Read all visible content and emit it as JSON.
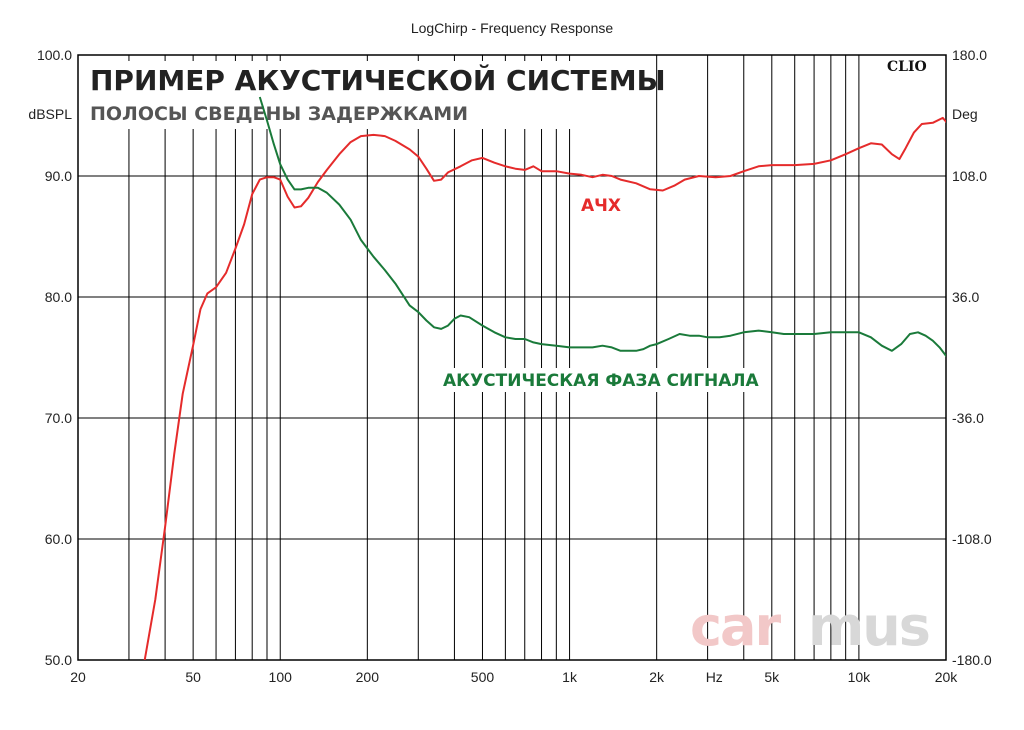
{
  "window_title": "LogChirp - Frequency Response",
  "heading": "ПРИМЕР АКУСТИЧЕСКОЙ СИСТЕМЫ",
  "subheading": "ПОЛОСЫ СВЕДЕНЫ ЗАДЕРЖКАМИ",
  "brand_mark": "CLIO",
  "watermark": {
    "part1": "car",
    "part2": "mus"
  },
  "chart_data": {
    "type": "line",
    "title": "LogChirp - Frequency Response",
    "xlabel": "Hz",
    "ylabel": "dBSPL",
    "y2label": "Deg",
    "xscale": "log",
    "xlim": [
      20,
      20000
    ],
    "ylim": [
      50,
      100
    ],
    "y2lim": [
      -180,
      180
    ],
    "grid": true,
    "x_ticks": [
      {
        "value": 20,
        "label": "20"
      },
      {
        "value": 50,
        "label": "50"
      },
      {
        "value": 100,
        "label": "100"
      },
      {
        "value": 200,
        "label": "200"
      },
      {
        "value": 500,
        "label": "500"
      },
      {
        "value": 1000,
        "label": "1k"
      },
      {
        "value": 2000,
        "label": "2k"
      },
      {
        "value": 5000,
        "label": "5k"
      },
      {
        "value": 10000,
        "label": "10k"
      },
      {
        "value": 20000,
        "label": "20k"
      }
    ],
    "x_unit_label": {
      "value": 3163,
      "label": "Hz"
    },
    "y_ticks": [
      {
        "value": 100,
        "label": "100.0"
      },
      {
        "value": 90,
        "label": "90.0"
      },
      {
        "value": 80,
        "label": "80.0"
      },
      {
        "value": 70,
        "label": "70.0"
      },
      {
        "value": 60,
        "label": "60.0"
      },
      {
        "value": 50,
        "label": "50.0"
      }
    ],
    "y2_ticks": [
      {
        "value": 180,
        "label": "180.0"
      },
      {
        "value": 108,
        "label": "108.0"
      },
      {
        "value": 36,
        "label": "36.0"
      },
      {
        "value": -36,
        "label": "-36.0"
      },
      {
        "value": -108,
        "label": "-108.0"
      },
      {
        "value": -180,
        "label": "-180.0"
      }
    ],
    "series": [
      {
        "name": "АЧХ",
        "axis": "left",
        "color": "#e52b2b",
        "points": [
          [
            34,
            50
          ],
          [
            37,
            55
          ],
          [
            40,
            61
          ],
          [
            43,
            67
          ],
          [
            46,
            72
          ],
          [
            50,
            76
          ],
          [
            53,
            79
          ],
          [
            56,
            80.3
          ],
          [
            60,
            80.8
          ],
          [
            65,
            82
          ],
          [
            70,
            84
          ],
          [
            75,
            86
          ],
          [
            80,
            88.5
          ],
          [
            85,
            89.7
          ],
          [
            90,
            89.9
          ],
          [
            95,
            89.9
          ],
          [
            100,
            89.7
          ],
          [
            106,
            88.3
          ],
          [
            112,
            87.4
          ],
          [
            118,
            87.5
          ],
          [
            125,
            88.2
          ],
          [
            135,
            89.5
          ],
          [
            145,
            90.5
          ],
          [
            160,
            91.8
          ],
          [
            175,
            92.8
          ],
          [
            190,
            93.3
          ],
          [
            210,
            93.4
          ],
          [
            230,
            93.3
          ],
          [
            250,
            92.9
          ],
          [
            280,
            92.2
          ],
          [
            300,
            91.6
          ],
          [
            320,
            90.6
          ],
          [
            340,
            89.6
          ],
          [
            360,
            89.7
          ],
          [
            380,
            90.3
          ],
          [
            420,
            90.8
          ],
          [
            460,
            91.3
          ],
          [
            500,
            91.5
          ],
          [
            550,
            91.1
          ],
          [
            600,
            90.8
          ],
          [
            650,
            90.6
          ],
          [
            700,
            90.5
          ],
          [
            750,
            90.8
          ],
          [
            800,
            90.4
          ],
          [
            900,
            90.4
          ],
          [
            1000,
            90.2
          ],
          [
            1100,
            90.1
          ],
          [
            1200,
            89.9
          ],
          [
            1300,
            90.1
          ],
          [
            1400,
            90.0
          ],
          [
            1500,
            89.7
          ],
          [
            1700,
            89.4
          ],
          [
            1900,
            88.9
          ],
          [
            2100,
            88.8
          ],
          [
            2300,
            89.2
          ],
          [
            2500,
            89.7
          ],
          [
            2800,
            90.0
          ],
          [
            3200,
            89.9
          ],
          [
            3600,
            90.0
          ],
          [
            4000,
            90.4
          ],
          [
            4500,
            90.8
          ],
          [
            5000,
            90.9
          ],
          [
            6000,
            90.9
          ],
          [
            7000,
            91.0
          ],
          [
            8000,
            91.3
          ],
          [
            9000,
            91.8
          ],
          [
            10000,
            92.3
          ],
          [
            11000,
            92.7
          ],
          [
            12000,
            92.6
          ],
          [
            13000,
            91.8
          ],
          [
            13800,
            91.4
          ],
          [
            14500,
            92.3
          ],
          [
            15500,
            93.6
          ],
          [
            16500,
            94.3
          ],
          [
            18000,
            94.4
          ],
          [
            19500,
            94.8
          ],
          [
            20500,
            94.2
          ],
          [
            21500,
            92.4
          ],
          [
            22000,
            92.0
          ]
        ]
      },
      {
        "name": "АКУСТИЧЕСКАЯ ФАЗА СИГНАЛА",
        "axis": "right",
        "color": "#1a7a3a",
        "points": [
          [
            85,
            155
          ],
          [
            90,
            141
          ],
          [
            95,
            127
          ],
          [
            100,
            115
          ],
          [
            106,
            106
          ],
          [
            112,
            100
          ],
          [
            118,
            100
          ],
          [
            125,
            101
          ],
          [
            135,
            101
          ],
          [
            145,
            98
          ],
          [
            160,
            91
          ],
          [
            175,
            82
          ],
          [
            190,
            70
          ],
          [
            210,
            60
          ],
          [
            230,
            52
          ],
          [
            250,
            44
          ],
          [
            280,
            31
          ],
          [
            300,
            27
          ],
          [
            320,
            22
          ],
          [
            340,
            18
          ],
          [
            360,
            17
          ],
          [
            380,
            19
          ],
          [
            400,
            23
          ],
          [
            420,
            25
          ],
          [
            450,
            24
          ],
          [
            500,
            19
          ],
          [
            550,
            15
          ],
          [
            600,
            12
          ],
          [
            650,
            11
          ],
          [
            700,
            11
          ],
          [
            750,
            9
          ],
          [
            800,
            8
          ],
          [
            900,
            7
          ],
          [
            1000,
            6
          ],
          [
            1100,
            6
          ],
          [
            1200,
            6
          ],
          [
            1300,
            7
          ],
          [
            1400,
            6
          ],
          [
            1500,
            4
          ],
          [
            1600,
            4
          ],
          [
            1700,
            4
          ],
          [
            1800,
            5
          ],
          [
            1900,
            7
          ],
          [
            2000,
            8
          ],
          [
            2200,
            11
          ],
          [
            2400,
            14
          ],
          [
            2600,
            13
          ],
          [
            2800,
            13
          ],
          [
            3000,
            12
          ],
          [
            3300,
            12
          ],
          [
            3600,
            13
          ],
          [
            4000,
            15
          ],
          [
            4500,
            16
          ],
          [
            5000,
            15
          ],
          [
            5500,
            14
          ],
          [
            6000,
            14
          ],
          [
            7000,
            14
          ],
          [
            8000,
            15
          ],
          [
            9000,
            15
          ],
          [
            10000,
            15
          ],
          [
            11000,
            12
          ],
          [
            12000,
            7
          ],
          [
            13000,
            4
          ],
          [
            14000,
            8
          ],
          [
            15000,
            14
          ],
          [
            16000,
            15
          ],
          [
            17000,
            13
          ],
          [
            18000,
            10
          ],
          [
            19000,
            6
          ],
          [
            20000,
            1
          ],
          [
            21000,
            -2
          ],
          [
            22000,
            -3
          ]
        ]
      }
    ],
    "annotations": [
      {
        "text": "АЧХ",
        "series": 0
      },
      {
        "text": "АКУСТИЧЕСКАЯ ФАЗА СИГНАЛА",
        "series": 1
      }
    ]
  }
}
